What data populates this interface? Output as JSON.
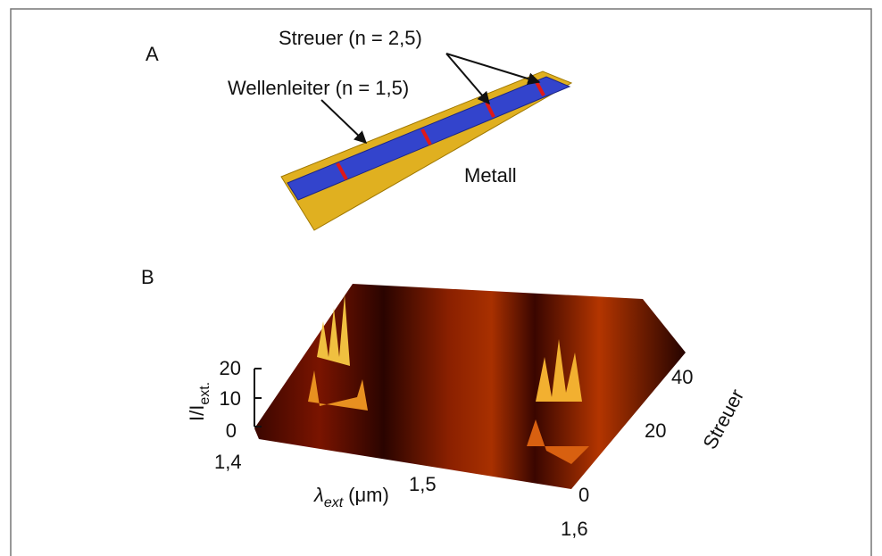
{
  "panel_a": {
    "label": "A",
    "annotations": {
      "scatterers": "Streuer (n = 2,5)",
      "waveguide": "Wellenleiter (n = 1,5)",
      "metal": "Metall"
    }
  },
  "panel_b": {
    "label": "B",
    "z_axis": {
      "label_main": "I/I",
      "label_sub": "ext.",
      "ticks": [
        "20",
        "10",
        "0"
      ]
    },
    "x_axis": {
      "label_main": "λ",
      "label_sub": "ext",
      "label_unit": "(μm)",
      "ticks": [
        "1,4",
        "1,5",
        "1,6"
      ]
    },
    "y_axis": {
      "label": "Streuer",
      "ticks": [
        "0",
        "20",
        "40"
      ]
    }
  }
}
